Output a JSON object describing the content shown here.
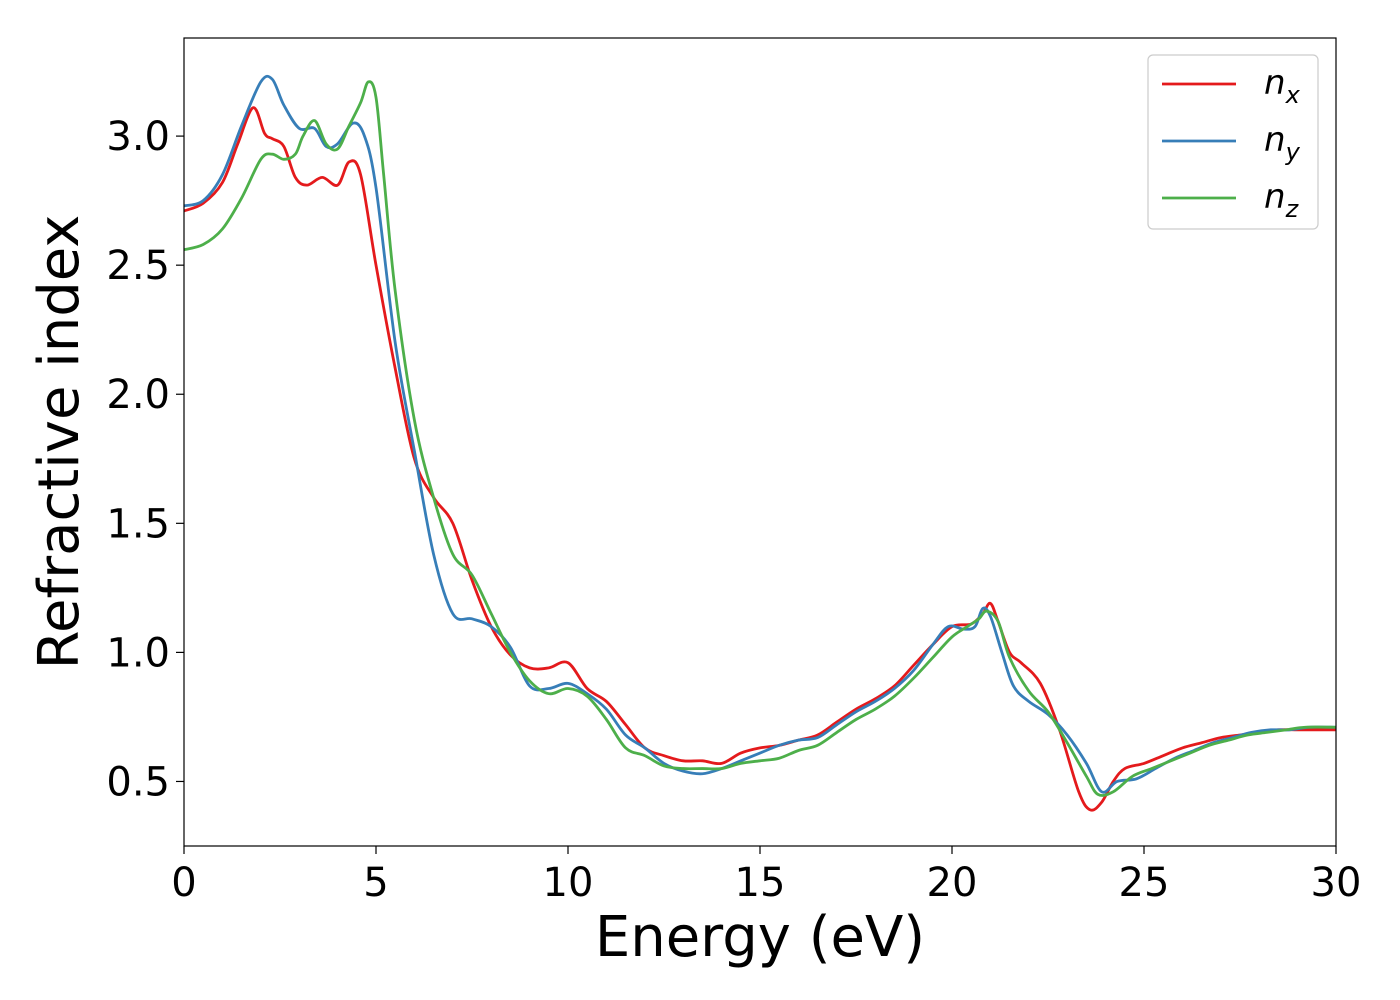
{
  "chart_data": {
    "type": "line",
    "xlabel": "Energy (eV)",
    "ylabel": "Refractive index",
    "xlim": [
      0,
      30
    ],
    "ylim": [
      0.25,
      3.38
    ],
    "xticks": [
      0,
      5,
      10,
      15,
      20,
      25,
      30
    ],
    "yticks": [
      0.5,
      1.0,
      1.5,
      2.0,
      2.5,
      3.0
    ],
    "xtick_labels": [
      "0",
      "5",
      "10",
      "15",
      "20",
      "25",
      "30"
    ],
    "ytick_labels": [
      "0.5",
      "1.0",
      "1.5",
      "2.0",
      "2.5",
      "3.0"
    ],
    "grid": false,
    "legend_position": "top-right",
    "series": [
      {
        "name": "n_x",
        "label_main": "n",
        "label_sub": "x",
        "color": "#e41a1c",
        "x": [
          0,
          0.5,
          1.0,
          1.4,
          1.8,
          2.1,
          2.3,
          2.6,
          2.9,
          3.2,
          3.6,
          4.0,
          4.3,
          4.6,
          5.0,
          5.5,
          6.0,
          6.5,
          7.0,
          7.5,
          8.0,
          8.5,
          9.0,
          9.5,
          10.0,
          10.5,
          11.0,
          11.5,
          12.0,
          12.5,
          13.0,
          13.5,
          14.0,
          14.5,
          15.0,
          15.5,
          16.0,
          16.5,
          17.0,
          17.5,
          18.0,
          18.5,
          19.0,
          19.5,
          20.0,
          20.5,
          20.8,
          21.0,
          21.2,
          21.5,
          21.8,
          22.3,
          22.8,
          23.3,
          23.6,
          23.9,
          24.2,
          24.5,
          25.0,
          25.5,
          26.0,
          26.5,
          27.0,
          27.5,
          28.0,
          28.5,
          29.0,
          29.5,
          30.0
        ],
        "y": [
          2.71,
          2.74,
          2.82,
          2.97,
          3.11,
          3.01,
          2.99,
          2.96,
          2.84,
          2.81,
          2.84,
          2.81,
          2.9,
          2.85,
          2.5,
          2.1,
          1.75,
          1.6,
          1.5,
          1.28,
          1.1,
          0.99,
          0.94,
          0.94,
          0.96,
          0.86,
          0.81,
          0.72,
          0.63,
          0.6,
          0.58,
          0.58,
          0.57,
          0.61,
          0.63,
          0.64,
          0.66,
          0.68,
          0.73,
          0.78,
          0.82,
          0.87,
          0.95,
          1.03,
          1.1,
          1.11,
          1.15,
          1.19,
          1.12,
          1.0,
          0.96,
          0.88,
          0.7,
          0.46,
          0.39,
          0.42,
          0.5,
          0.55,
          0.57,
          0.6,
          0.63,
          0.65,
          0.67,
          0.68,
          0.69,
          0.7,
          0.7,
          0.7,
          0.7
        ]
      },
      {
        "name": "n_y",
        "label_main": "n",
        "label_sub": "y",
        "color": "#377eb8",
        "x": [
          0,
          0.5,
          1.0,
          1.5,
          2.0,
          2.3,
          2.6,
          3.0,
          3.4,
          3.7,
          4.0,
          4.4,
          4.7,
          5.0,
          5.5,
          6.0,
          6.5,
          7.0,
          7.5,
          8.0,
          8.5,
          9.0,
          9.5,
          10.0,
          10.5,
          11.0,
          11.5,
          12.0,
          12.5,
          13.0,
          13.5,
          14.0,
          14.5,
          15.0,
          15.5,
          16.0,
          16.5,
          17.0,
          17.5,
          18.0,
          18.5,
          19.0,
          19.5,
          19.9,
          20.3,
          20.6,
          20.8,
          21.0,
          21.3,
          21.6,
          22.0,
          22.5,
          23.0,
          23.5,
          23.9,
          24.3,
          24.8,
          25.3,
          25.8,
          26.3,
          26.8,
          27.3,
          27.8,
          28.3,
          28.8,
          29.3,
          30.0
        ],
        "y": [
          2.73,
          2.75,
          2.85,
          3.04,
          3.21,
          3.22,
          3.12,
          3.03,
          3.03,
          2.96,
          2.97,
          3.05,
          3.0,
          2.8,
          2.2,
          1.78,
          1.38,
          1.15,
          1.13,
          1.1,
          1.02,
          0.87,
          0.86,
          0.88,
          0.84,
          0.78,
          0.68,
          0.63,
          0.57,
          0.54,
          0.53,
          0.55,
          0.58,
          0.61,
          0.64,
          0.66,
          0.67,
          0.72,
          0.77,
          0.81,
          0.86,
          0.93,
          1.03,
          1.1,
          1.09,
          1.1,
          1.17,
          1.14,
          1.0,
          0.87,
          0.81,
          0.76,
          0.68,
          0.57,
          0.46,
          0.5,
          0.51,
          0.55,
          0.59,
          0.62,
          0.65,
          0.67,
          0.69,
          0.7,
          0.7,
          0.71,
          0.71
        ]
      },
      {
        "name": "n_z",
        "label_main": "n",
        "label_sub": "z",
        "color": "#4daf4a",
        "x": [
          0,
          0.5,
          1.0,
          1.5,
          2.0,
          2.3,
          2.6,
          2.9,
          3.1,
          3.4,
          3.7,
          4.0,
          4.3,
          4.6,
          4.8,
          5.0,
          5.2,
          5.5,
          6.0,
          6.5,
          7.0,
          7.5,
          8.0,
          8.5,
          9.0,
          9.5,
          10.0,
          10.5,
          11.0,
          11.5,
          12.0,
          12.5,
          13.0,
          13.5,
          14.0,
          14.5,
          15.0,
          15.5,
          16.0,
          16.5,
          17.0,
          17.5,
          18.0,
          18.5,
          19.0,
          19.5,
          20.0,
          20.4,
          20.7,
          20.9,
          21.2,
          21.5,
          22.0,
          22.5,
          23.0,
          23.5,
          23.8,
          24.2,
          24.7,
          25.2,
          25.7,
          26.2,
          26.7,
          27.2,
          27.7,
          28.2,
          28.7,
          29.2,
          30.0
        ],
        "y": [
          2.56,
          2.58,
          2.64,
          2.76,
          2.91,
          2.93,
          2.91,
          2.93,
          3.0,
          3.06,
          2.97,
          2.95,
          3.04,
          3.13,
          3.21,
          3.15,
          2.85,
          2.4,
          1.9,
          1.6,
          1.38,
          1.3,
          1.15,
          1.0,
          0.89,
          0.84,
          0.86,
          0.83,
          0.74,
          0.63,
          0.6,
          0.56,
          0.55,
          0.55,
          0.55,
          0.57,
          0.58,
          0.59,
          0.62,
          0.64,
          0.69,
          0.74,
          0.78,
          0.83,
          0.9,
          0.98,
          1.06,
          1.1,
          1.13,
          1.16,
          1.12,
          0.98,
          0.85,
          0.77,
          0.65,
          0.52,
          0.45,
          0.46,
          0.52,
          0.55,
          0.58,
          0.61,
          0.64,
          0.66,
          0.68,
          0.69,
          0.7,
          0.71,
          0.71
        ]
      }
    ]
  }
}
